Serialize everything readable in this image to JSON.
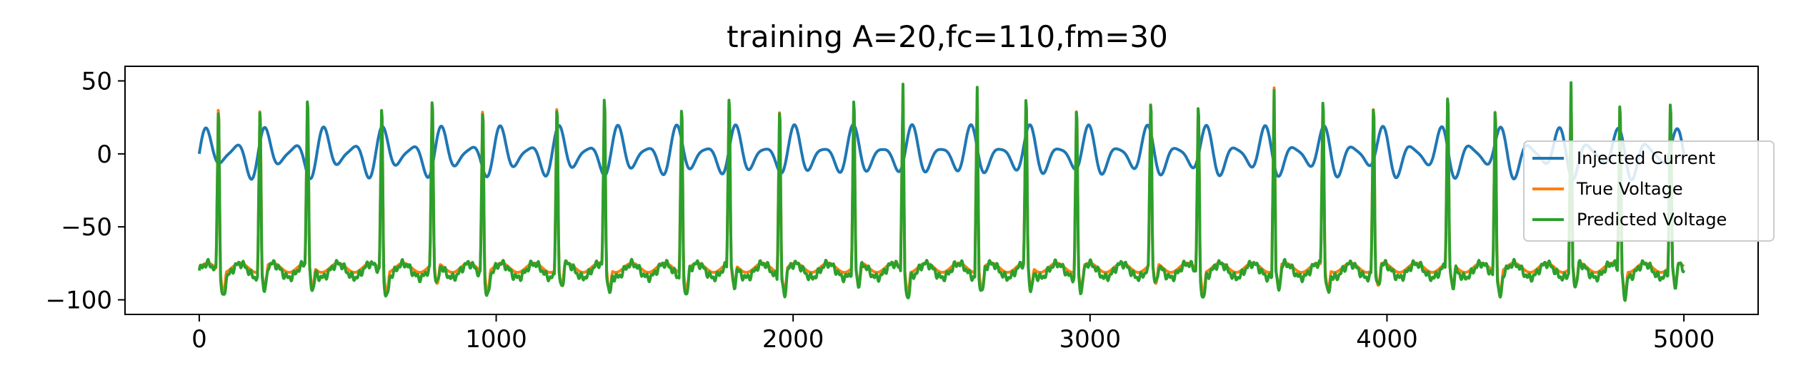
{
  "chart_data": {
    "type": "line",
    "title": "training A=20,fc=110,fm=30",
    "xlabel": "",
    "ylabel": "",
    "xlim": [
      -250,
      5250
    ],
    "ylim": [
      -110,
      60
    ],
    "xticks": [
      0,
      1000,
      2000,
      3000,
      4000,
      5000
    ],
    "yticks": [
      50,
      0,
      -50,
      -100
    ],
    "grid": false,
    "legend_position": "right",
    "series": [
      {
        "name": "Injected Current",
        "color": "#1f77b4",
        "kind": "am_sine",
        "amplitude": 20,
        "fc": 110,
        "fm": 30,
        "x_range": [
          0,
          5000
        ]
      },
      {
        "name": "True Voltage",
        "color": "#ff7f0e",
        "kind": "spike_train",
        "x_range": [
          0,
          5000
        ],
        "rest_level": -78,
        "peak_level": 47,
        "spike_times": [
          65,
          205,
          365,
          615,
          785,
          955,
          1205,
          1365,
          1625,
          1785,
          1955,
          2205,
          2370,
          2620,
          2785,
          2955,
          3205,
          3365,
          3620,
          3785,
          3955,
          4205,
          4365,
          4620,
          4785,
          4955
        ]
      },
      {
        "name": "Predicted Voltage",
        "color": "#2ca02c",
        "kind": "spike_train",
        "x_range": [
          0,
          5000
        ],
        "rest_level": -80,
        "peak_level": 48,
        "spike_times": [
          65,
          205,
          365,
          615,
          785,
          955,
          1205,
          1365,
          1625,
          1785,
          1955,
          2205,
          2370,
          2620,
          2785,
          2955,
          3205,
          3365,
          3620,
          3785,
          3955,
          4205,
          4365,
          4620,
          4785,
          4955
        ]
      }
    ]
  }
}
